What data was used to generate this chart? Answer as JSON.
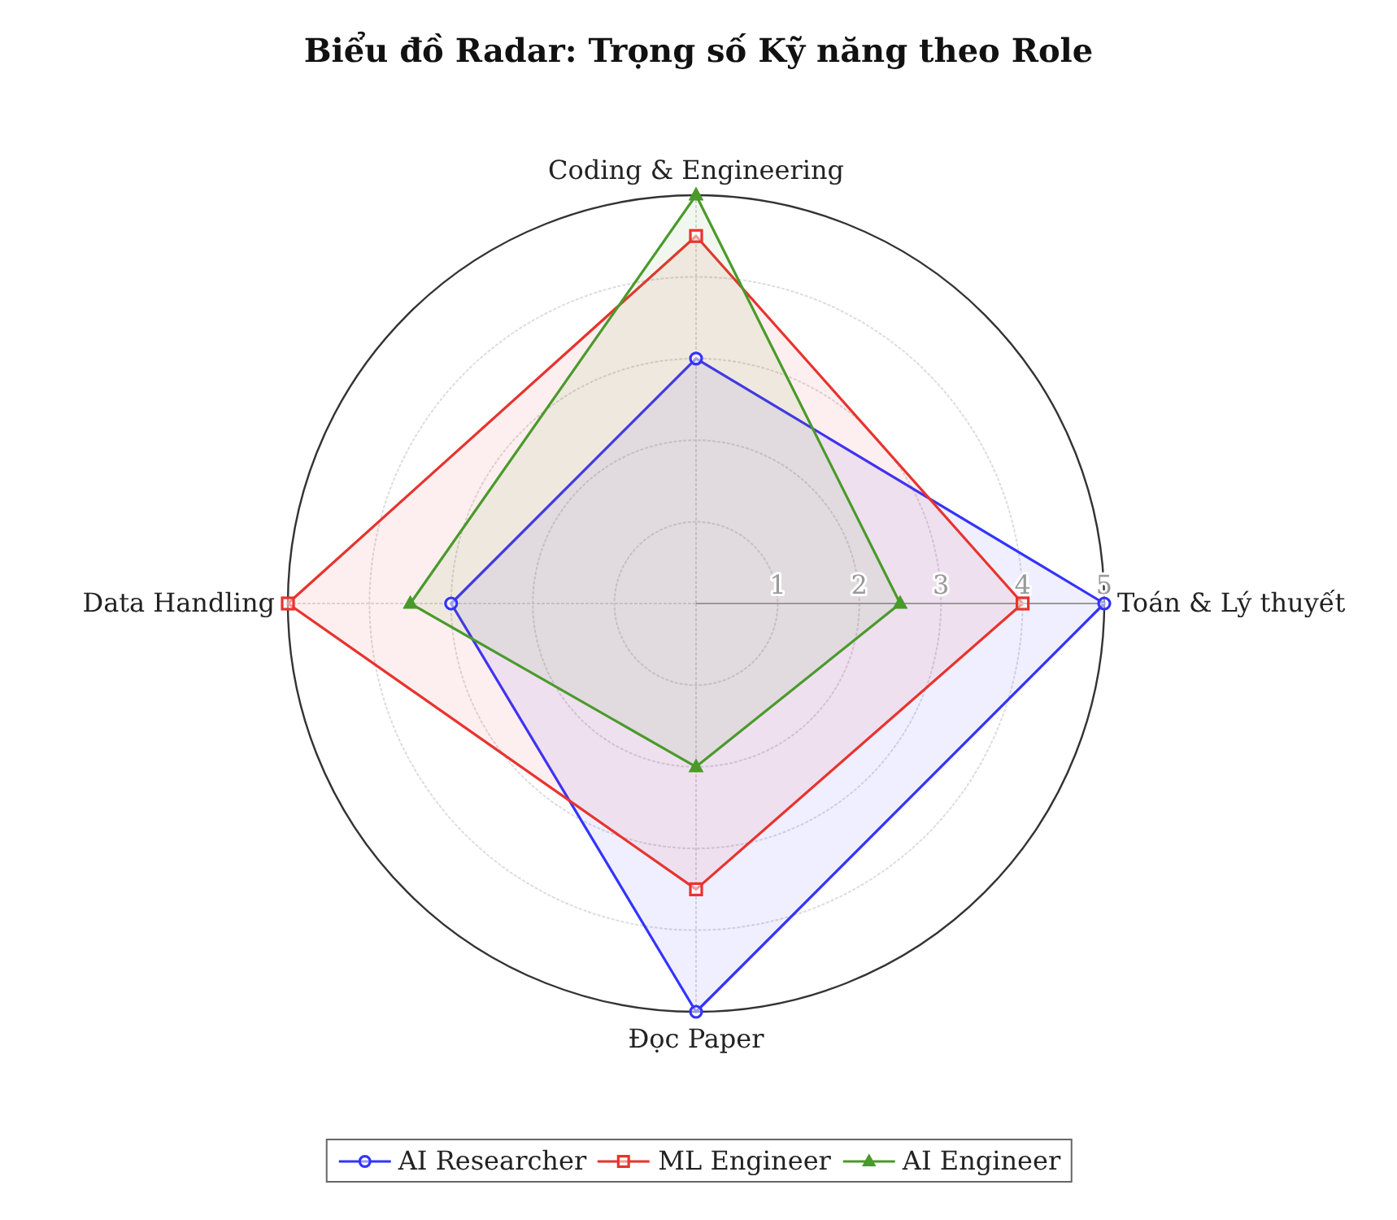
{
  "chart_data": {
    "type": "radar",
    "title": "Biểu đồ Radar: Trọng số Kỹ năng theo Role",
    "categories": [
      "Coding & Engineering",
      "Toán & Lý thuyết",
      "Đọc Paper",
      "Data Handling"
    ],
    "series": [
      {
        "name": "AI Researcher",
        "color": "#3333ff",
        "marker": "circle",
        "values": [
          3,
          5,
          5,
          3
        ]
      },
      {
        "name": "ML Engineer",
        "color": "#e8332e",
        "marker": "square",
        "values": [
          4.5,
          4,
          3.5,
          5
        ]
      },
      {
        "name": "AI Engineer",
        "color": "#4a9a2a",
        "marker": "triangle",
        "values": [
          5,
          2.5,
          2,
          3.5
        ]
      }
    ],
    "ylim": [
      0,
      5
    ],
    "yticks": [
      1,
      2,
      3,
      4,
      5
    ],
    "grid": true,
    "legend": "bottom"
  }
}
